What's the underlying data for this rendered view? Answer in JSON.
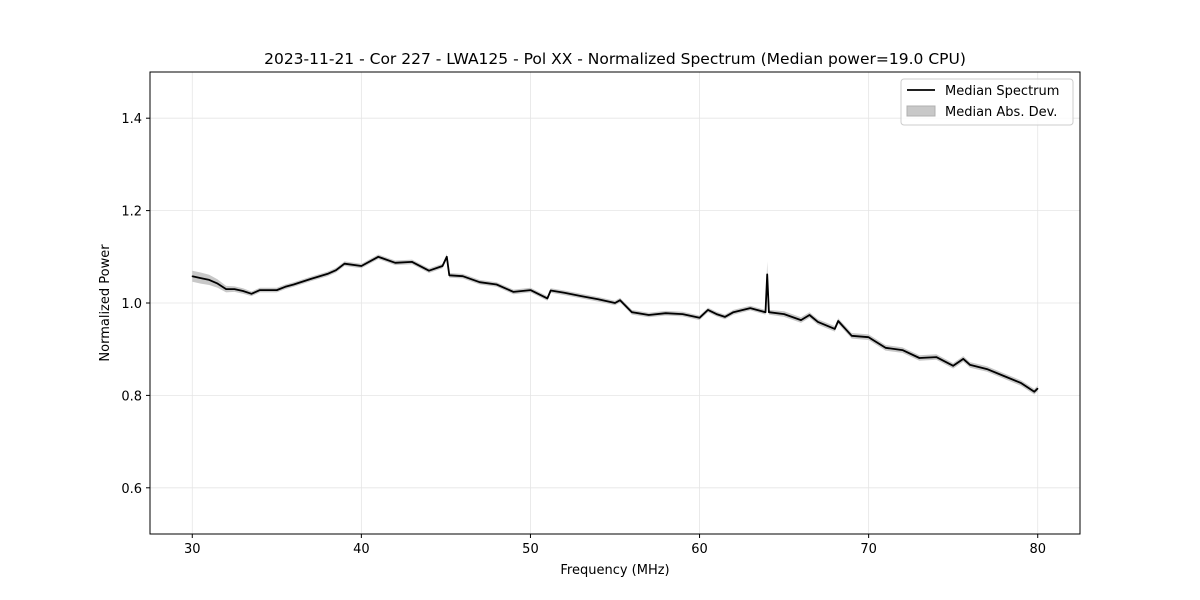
{
  "chart_data": {
    "type": "line",
    "title": "2023-11-21 - Cor 227 - LWA125 - Pol XX - Normalized Spectrum (Median power=19.0 CPU)",
    "xlabel": "Frequency (MHz)",
    "ylabel": "Normalized Power",
    "xlim": [
      27.5,
      82.5
    ],
    "ylim": [
      0.5,
      1.5
    ],
    "xticks": [
      30,
      40,
      50,
      60,
      70,
      80
    ],
    "xtick_labels": [
      "30",
      "40",
      "50",
      "60",
      "70",
      "80"
    ],
    "yticks": [
      0.6,
      0.8,
      1.0,
      1.2,
      1.4
    ],
    "ytick_labels": [
      "0.6",
      "0.8",
      "1.0",
      "1.2",
      "1.4"
    ],
    "grid": true,
    "legend": {
      "placement": "top-right",
      "entries": [
        "Median Spectrum",
        "Median Abs. Dev."
      ]
    },
    "colors": {
      "line": "#000000",
      "band": "#c8c8c8",
      "grid": "#e5e5e5"
    },
    "series": [
      {
        "name": "Median Spectrum",
        "x": [
          30,
          30.5,
          31,
          31.5,
          32,
          32.5,
          33,
          33.5,
          34,
          35,
          35.5,
          36,
          37,
          38,
          38.5,
          39,
          40,
          41,
          42,
          43,
          44,
          44.8,
          45.05,
          45.2,
          46,
          47,
          48,
          49,
          50,
          51,
          51.2,
          52,
          53,
          54,
          55,
          55.3,
          56,
          57,
          58,
          59,
          60,
          60.5,
          61,
          61.5,
          62,
          63,
          63.9,
          64,
          64.1,
          65,
          66,
          66.5,
          67,
          68,
          68.2,
          69,
          70,
          71,
          72,
          73,
          74,
          75,
          75.6,
          76,
          77,
          78,
          79,
          79.8,
          80
        ],
        "y": [
          1.058,
          1.054,
          1.05,
          1.042,
          1.03,
          1.03,
          1.026,
          1.02,
          1.028,
          1.028,
          1.035,
          1.04,
          1.052,
          1.063,
          1.071,
          1.085,
          1.08,
          1.1,
          1.087,
          1.089,
          1.07,
          1.08,
          1.1,
          1.06,
          1.058,
          1.045,
          1.04,
          1.024,
          1.028,
          1.01,
          1.027,
          1.022,
          1.015,
          1.008,
          1.0,
          1.006,
          0.98,
          0.974,
          0.978,
          0.976,
          0.968,
          0.985,
          0.976,
          0.97,
          0.98,
          0.989,
          0.98,
          1.062,
          0.98,
          0.976,
          0.963,
          0.974,
          0.959,
          0.944,
          0.961,
          0.929,
          0.926,
          0.903,
          0.898,
          0.881,
          0.883,
          0.864,
          0.879,
          0.866,
          0.857,
          0.842,
          0.827,
          0.808,
          0.815
        ],
        "mad": [
          0.012,
          0.012,
          0.011,
          0.009,
          0.007,
          0.006,
          0.006,
          0.005,
          0.005,
          0.005,
          0.005,
          0.005,
          0.005,
          0.005,
          0.005,
          0.005,
          0.005,
          0.005,
          0.005,
          0.005,
          0.005,
          0.005,
          0.006,
          0.005,
          0.005,
          0.005,
          0.005,
          0.005,
          0.005,
          0.005,
          0.005,
          0.005,
          0.005,
          0.005,
          0.005,
          0.005,
          0.005,
          0.005,
          0.005,
          0.005,
          0.005,
          0.005,
          0.005,
          0.005,
          0.005,
          0.005,
          0.005,
          0.028,
          0.005,
          0.006,
          0.006,
          0.006,
          0.006,
          0.006,
          0.006,
          0.006,
          0.006,
          0.006,
          0.006,
          0.006,
          0.006,
          0.006,
          0.006,
          0.006,
          0.006,
          0.006,
          0.006,
          0.006,
          0.006
        ]
      }
    ]
  }
}
